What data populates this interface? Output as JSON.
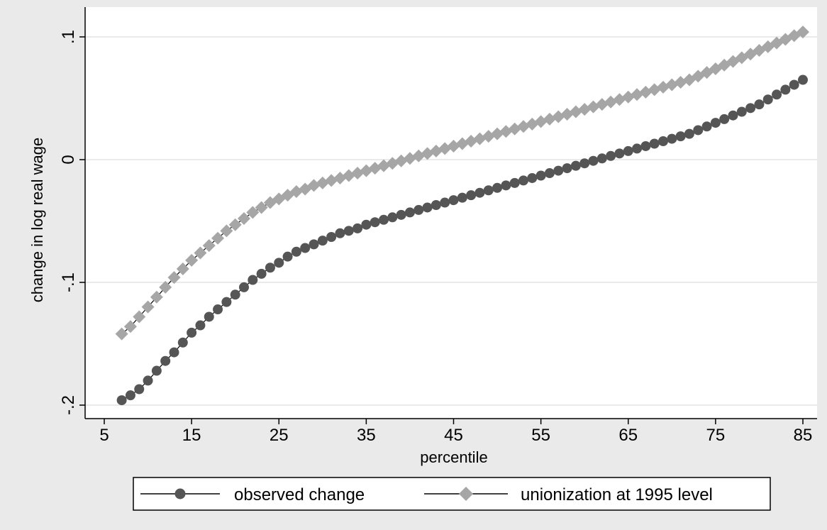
{
  "chart_data": {
    "type": "line",
    "xlabel": "percentile",
    "ylabel": "change in log real wage",
    "xlim": [
      5,
      85
    ],
    "ylim": [
      -0.2,
      0.1
    ],
    "grid": true,
    "legend_position": "bottom",
    "x_ticks": [
      5,
      15,
      25,
      35,
      45,
      55,
      65,
      75,
      85
    ],
    "x_tick_labels": [
      "5",
      "15",
      "25",
      "35",
      "45",
      "55",
      "65",
      "75",
      "85"
    ],
    "y_ticks": [
      -0.2,
      -0.1,
      0,
      0.1
    ],
    "y_tick_labels": [
      "-.2",
      "-.1",
      "0",
      ".1"
    ],
    "x": [
      7,
      8,
      9,
      10,
      11,
      12,
      13,
      14,
      15,
      16,
      17,
      18,
      19,
      20,
      21,
      22,
      23,
      24,
      25,
      26,
      27,
      28,
      29,
      30,
      31,
      32,
      33,
      34,
      35,
      36,
      37,
      38,
      39,
      40,
      41,
      42,
      43,
      44,
      45,
      46,
      47,
      48,
      49,
      50,
      51,
      52,
      53,
      54,
      55,
      56,
      57,
      58,
      59,
      60,
      61,
      62,
      63,
      64,
      65,
      66,
      67,
      68,
      69,
      70,
      71,
      72,
      73,
      74,
      75,
      76,
      77,
      78,
      79,
      80,
      81,
      82,
      83,
      84,
      85
    ],
    "series": [
      {
        "name": "observed change",
        "color": "#555555",
        "marker": "circle",
        "values": [
          -0.196,
          -0.192,
          -0.187,
          -0.18,
          -0.172,
          -0.164,
          -0.157,
          -0.149,
          -0.141,
          -0.135,
          -0.128,
          -0.122,
          -0.116,
          -0.11,
          -0.104,
          -0.098,
          -0.093,
          -0.088,
          -0.084,
          -0.079,
          -0.075,
          -0.072,
          -0.069,
          -0.066,
          -0.063,
          -0.06,
          -0.058,
          -0.056,
          -0.053,
          -0.051,
          -0.049,
          -0.047,
          -0.045,
          -0.043,
          -0.041,
          -0.039,
          -0.037,
          -0.035,
          -0.033,
          -0.031,
          -0.029,
          -0.027,
          -0.025,
          -0.023,
          -0.021,
          -0.019,
          -0.017,
          -0.015,
          -0.013,
          -0.011,
          -0.009,
          -0.007,
          -0.005,
          -0.003,
          -0.001,
          0.001,
          0.003,
          0.005,
          0.007,
          0.009,
          0.011,
          0.013,
          0.015,
          0.017,
          0.019,
          0.021,
          0.024,
          0.027,
          0.03,
          0.033,
          0.036,
          0.039,
          0.042,
          0.045,
          0.049,
          0.053,
          0.057,
          0.061,
          0.065
        ]
      },
      {
        "name": "unionization at 1995 level",
        "color": "#a6a6a6",
        "marker": "diamond",
        "values": [
          -0.142,
          -0.136,
          -0.128,
          -0.12,
          -0.112,
          -0.104,
          -0.096,
          -0.089,
          -0.082,
          -0.076,
          -0.07,
          -0.064,
          -0.058,
          -0.053,
          -0.048,
          -0.043,
          -0.039,
          -0.035,
          -0.032,
          -0.029,
          -0.026,
          -0.024,
          -0.021,
          -0.019,
          -0.017,
          -0.015,
          -0.013,
          -0.011,
          -0.009,
          -0.007,
          -0.005,
          -0.003,
          -0.001,
          0.001,
          0.003,
          0.005,
          0.007,
          0.009,
          0.011,
          0.013,
          0.015,
          0.017,
          0.019,
          0.021,
          0.023,
          0.025,
          0.027,
          0.029,
          0.031,
          0.033,
          0.035,
          0.037,
          0.039,
          0.041,
          0.043,
          0.045,
          0.047,
          0.049,
          0.051,
          0.053,
          0.055,
          0.057,
          0.059,
          0.061,
          0.063,
          0.065,
          0.068,
          0.071,
          0.074,
          0.077,
          0.08,
          0.083,
          0.086,
          0.089,
          0.092,
          0.095,
          0.098,
          0.101,
          0.104
        ]
      }
    ]
  },
  "colors": {
    "outer_background": "#eaeaea",
    "plot_background": "#ffffff",
    "grid": "#e4e4e4",
    "axis": "#000000"
  }
}
